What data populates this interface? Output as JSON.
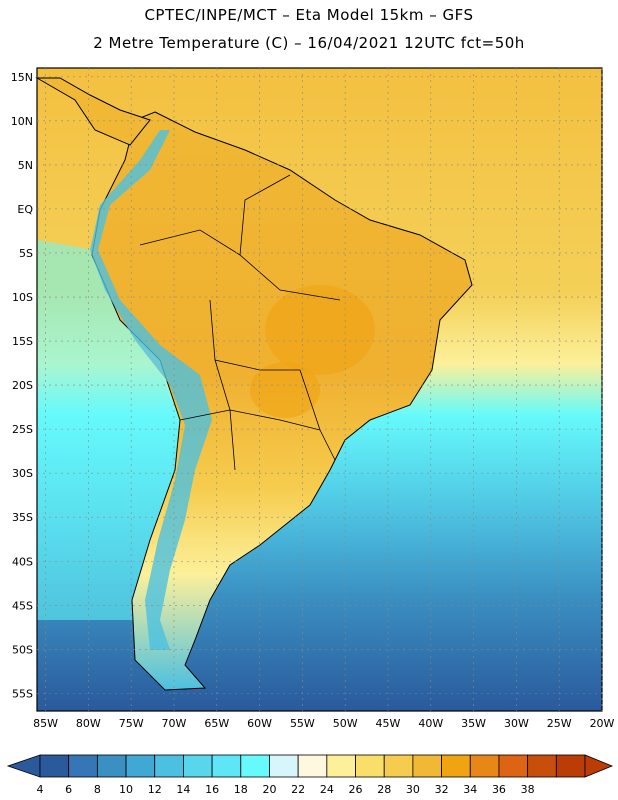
{
  "title": {
    "line1": "CPTEC/INPE/MCT –  Eta Model 15km – GFS",
    "line2": "2 Metre Temperature (C) – 16/04/2021 12UTC fct=50h"
  },
  "map": {
    "lat_labels": [
      "15N",
      "10N",
      "5N",
      "EQ",
      "5S",
      "10S",
      "15S",
      "20S",
      "25S",
      "30S",
      "35S",
      "40S",
      "45S",
      "50S",
      "55S"
    ],
    "lat_values": [
      15,
      10,
      5,
      0,
      -5,
      -10,
      -15,
      -20,
      -25,
      -30,
      -35,
      -40,
      -45,
      -50,
      -55
    ],
    "lon_labels": [
      "85W",
      "80W",
      "75W",
      "70W",
      "65W",
      "60W",
      "55W",
      "50W",
      "45W",
      "40W",
      "35W",
      "30W",
      "25W",
      "20W"
    ],
    "lon_values": [
      -85,
      -80,
      -75,
      -70,
      -65,
      -60,
      -55,
      -50,
      -45,
      -40,
      -35,
      -30,
      -25,
      -20
    ],
    "extent": {
      "lon_min": -86,
      "lon_max": -20,
      "lat_min": -57,
      "lat_max": 16
    }
  },
  "legend": {
    "ticks": [
      "4",
      "6",
      "8",
      "10",
      "12",
      "14",
      "16",
      "18",
      "20",
      "22",
      "24",
      "26",
      "28",
      "30",
      "32",
      "34",
      "36",
      "38"
    ],
    "colors": [
      "#2a5a9c",
      "#3576b6",
      "#3b90c2",
      "#40a8d4",
      "#4cc0e0",
      "#58d6ec",
      "#5ee6f6",
      "#66fafc",
      "#d6f6fc",
      "#fdf8de",
      "#fcf09a",
      "#fade6a",
      "#f6cc4e",
      "#f0b834",
      "#f0a412",
      "#e88618",
      "#dc6412",
      "#c84e0c",
      "#bc3c06"
    ]
  }
}
